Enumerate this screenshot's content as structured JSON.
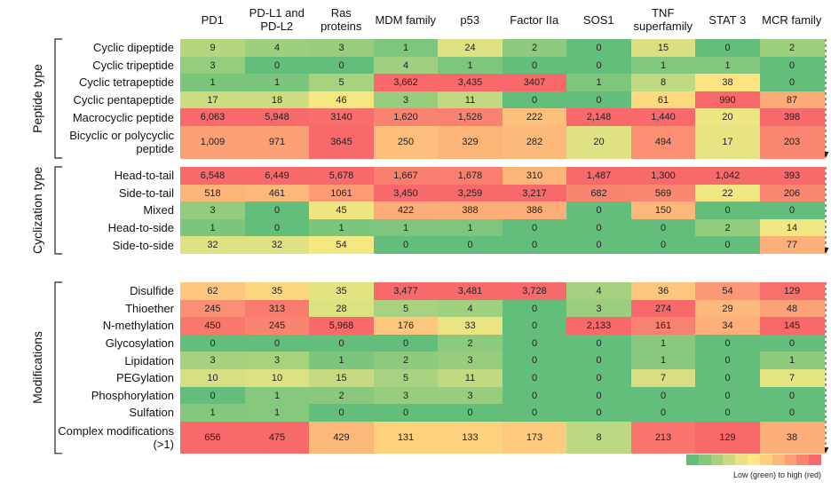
{
  "columns": [
    "PD1",
    "PD-L1 and PD-L2",
    "Ras proteins",
    "MDM family",
    "p53",
    "Factor IIa",
    "SOS1",
    "TNF superfamily",
    "STAT 3",
    "MCR family"
  ],
  "groups": [
    {
      "label": "Peptide type",
      "rows": [
        {
          "label": "Cyclic dipeptide",
          "cells": [
            "9",
            "4",
            "3",
            "1",
            "24",
            "2",
            "0",
            "15",
            "0",
            "2"
          ]
        },
        {
          "label": "Cyclic tripeptide",
          "cells": [
            "3",
            "0",
            "0",
            "4",
            "1",
            "0",
            "0",
            "1",
            "1",
            "0"
          ]
        },
        {
          "label": "Cyclic tetrapeptide",
          "cells": [
            "1",
            "1",
            "5",
            "3,662",
            "3,435",
            "3407",
            "1",
            "8",
            "38",
            "0"
          ]
        },
        {
          "label": "Cyclic pentapeptide",
          "cells": [
            "17",
            "18",
            "46",
            "3",
            "11",
            "0",
            "0",
            "61",
            "990",
            "87"
          ]
        },
        {
          "label": "Macrocyclic peptide",
          "cells": [
            "6,063",
            "5,948",
            "3140",
            "1,620",
            "1,526",
            "222",
            "2,148",
            "1,440",
            "20",
            "398"
          ]
        },
        {
          "label": "Bicyclic or polycyclic peptide",
          "cells": [
            "1,009",
            "971",
            "3645",
            "250",
            "329",
            "282",
            "20",
            "494",
            "17",
            "203"
          ]
        }
      ]
    },
    {
      "label": "Cyclization type",
      "rows": [
        {
          "label": "Head-to-tail",
          "cells": [
            "6,548",
            "6,449",
            "5,678",
            "1,667",
            "1,678",
            "310",
            "1,487",
            "1,300",
            "1,042",
            "393"
          ]
        },
        {
          "label": "Side-to-tail",
          "cells": [
            "518",
            "461",
            "1061",
            "3,450",
            "3,259",
            "3,217",
            "682",
            "569",
            "22",
            "206"
          ]
        },
        {
          "label": "Mixed",
          "cells": [
            "3",
            "0",
            "45",
            "422",
            "388",
            "386",
            "0",
            "150",
            "0",
            "0"
          ]
        },
        {
          "label": "Head-to-side",
          "cells": [
            "1",
            "0",
            "1",
            "1",
            "1",
            "0",
            "0",
            "0",
            "2",
            "14"
          ]
        },
        {
          "label": "Side-to-side",
          "cells": [
            "32",
            "32",
            "54",
            "0",
            "0",
            "0",
            "0",
            "0",
            "0",
            "77"
          ]
        }
      ]
    },
    {
      "label": "Modifications",
      "rows": [
        {
          "label": "Disulfide",
          "cells": [
            "62",
            "35",
            "35",
            "3,477",
            "3,481",
            "3,728",
            "4",
            "36",
            "54",
            "129"
          ]
        },
        {
          "label": "Thioether",
          "cells": [
            "245",
            "313",
            "28",
            "5",
            "4",
            "0",
            "3",
            "274",
            "29",
            "48"
          ]
        },
        {
          "label": "N-methylation",
          "cells": [
            "450",
            "245",
            "5,968",
            "176",
            "33",
            "0",
            "2,133",
            "161",
            "34",
            "145"
          ]
        },
        {
          "label": "Glycosylation",
          "cells": [
            "0",
            "0",
            "0",
            "0",
            "2",
            "0",
            "0",
            "1",
            "0",
            "0"
          ]
        },
        {
          "label": "Lipidation",
          "cells": [
            "3",
            "3",
            "1",
            "2",
            "3",
            "0",
            "0",
            "1",
            "0",
            "1"
          ]
        },
        {
          "label": "PEGylation",
          "cells": [
            "10",
            "10",
            "15",
            "5",
            "11",
            "0",
            "0",
            "7",
            "0",
            "7"
          ]
        },
        {
          "label": "Phosphorylation",
          "cells": [
            "0",
            "1",
            "2",
            "3",
            "3",
            "0",
            "0",
            "0",
            "0",
            "0"
          ]
        },
        {
          "label": "Sulfation",
          "cells": [
            "1",
            "1",
            "0",
            "0",
            "0",
            "0",
            "0",
            "0",
            "0",
            "0"
          ]
        },
        {
          "label": "Complex modifications (>1)",
          "cells": [
            "656",
            "475",
            "429",
            "131",
            "133",
            "173",
            "8",
            "213",
            "129",
            "38"
          ]
        }
      ]
    }
  ],
  "legend": "Low (green) to high (red)"
}
